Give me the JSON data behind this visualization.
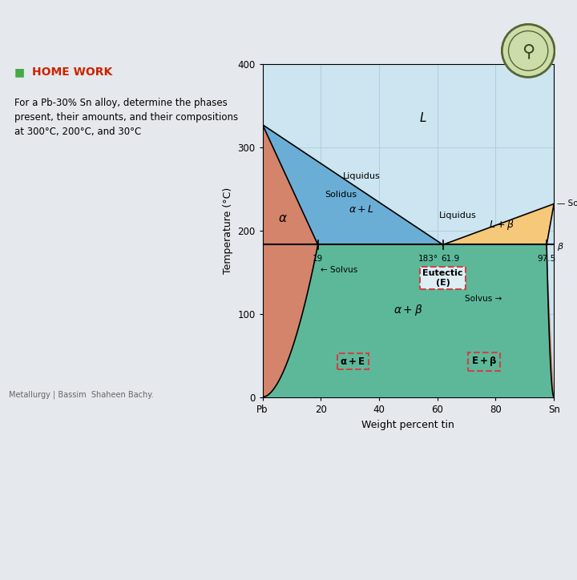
{
  "xlabel": "Weight percent tin",
  "ylabel": "Temperature (°C)",
  "xlim": [
    0,
    100
  ],
  "ylim": [
    0,
    400
  ],
  "xticks": [
    0,
    20,
    40,
    60,
    80,
    100
  ],
  "xticklabels": [
    "Pb",
    "20",
    "40",
    "60",
    "80",
    "Sn"
  ],
  "yticks": [
    0,
    100,
    200,
    300,
    400
  ],
  "L_color": "#cce5f0",
  "alpha_color": "#d4846a",
  "alpha_L_color": "#6aaed6",
  "L_beta_color": "#f5c87a",
  "alpha_beta_color": "#5db89a",
  "eutectic_temp": 183,
  "eutectic_comp": 61.9,
  "alpha_solvus_comp": 19,
  "beta_solvus_comp": 97.5,
  "pb_melt": 327,
  "sn_melt": 232,
  "homework_title": "HOME WORK",
  "homework_text": "For a Pb-30% Sn alloy, determine the phases\npresent, their amounts, and their compositions\nat 300°C, 200°C, and 30°C",
  "footer_text": "Metallurgy | Bassim  Shaheen Bachy.",
  "grid_color": "#aac8d8",
  "outer_bg": "#e5e8ec",
  "panel_bg": "#ffffff",
  "title_color": "#cc2200",
  "green_marker": "#44aa44"
}
